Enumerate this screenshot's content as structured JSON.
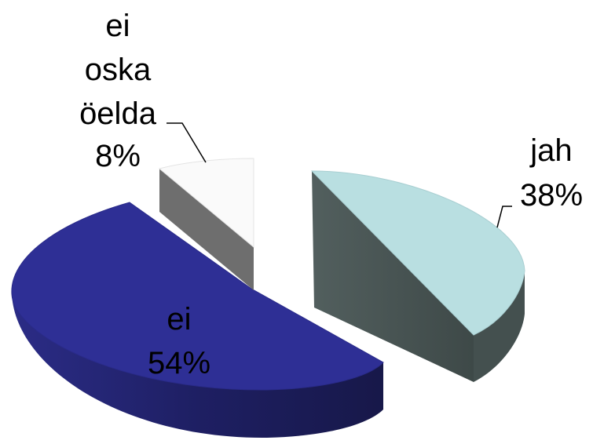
{
  "chart_data": {
    "type": "pie",
    "style": "3d-exploded",
    "slices": [
      {
        "label": "jah",
        "value": 38,
        "value_text": "38%",
        "color": "#b9dfe1",
        "side_color": "#4a5a58"
      },
      {
        "label": "ei",
        "value": 54,
        "value_text": "54%",
        "color": "#2e2f95",
        "side_color": "#1f1f66"
      },
      {
        "label_lines": [
          "ei",
          "oska",
          "öelda"
        ],
        "value": 8,
        "value_text": "8%",
        "color": "#fafafa",
        "side_color": "#6a6a6a"
      }
    ],
    "legend": "none"
  }
}
